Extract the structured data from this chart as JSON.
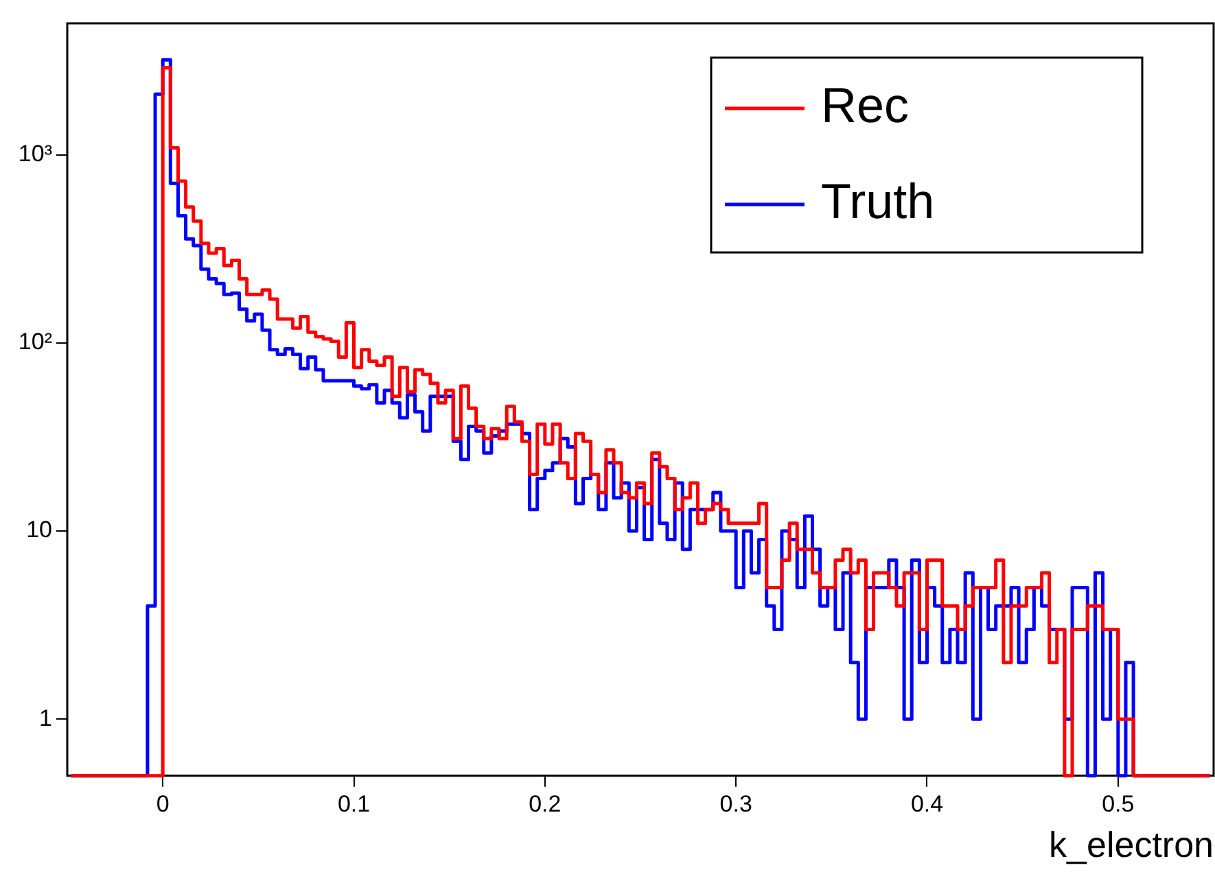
{
  "chart_data": {
    "type": "histogram",
    "xlabel": "k_electron",
    "bins": [
      -0.048,
      -0.044,
      -0.04,
      -0.036,
      -0.032,
      -0.028,
      -0.024,
      -0.02,
      -0.016,
      -0.012,
      -0.008,
      -0.004,
      0,
      0.004,
      0.008,
      0.012,
      0.016,
      0.02,
      0.024,
      0.028,
      0.032,
      0.036,
      0.04,
      0.044,
      0.048,
      0.052,
      0.056,
      0.06,
      0.064,
      0.068,
      0.072,
      0.076,
      0.08,
      0.084,
      0.088,
      0.092,
      0.096,
      0.1,
      0.104,
      0.108,
      0.112,
      0.116,
      0.12,
      0.124,
      0.128,
      0.132,
      0.136,
      0.14,
      0.144,
      0.148,
      0.152,
      0.156,
      0.16,
      0.164,
      0.168,
      0.172,
      0.176,
      0.18,
      0.184,
      0.188,
      0.192,
      0.196,
      0.2,
      0.204,
      0.208,
      0.212,
      0.216,
      0.22,
      0.224,
      0.228,
      0.232,
      0.236,
      0.24,
      0.244,
      0.248,
      0.252,
      0.256,
      0.26,
      0.264,
      0.268,
      0.272,
      0.276,
      0.28,
      0.284,
      0.288,
      0.292,
      0.296,
      0.3,
      0.304,
      0.308,
      0.312,
      0.316,
      0.32,
      0.324,
      0.328,
      0.332,
      0.336,
      0.34,
      0.344,
      0.348,
      0.352,
      0.356,
      0.36,
      0.364,
      0.368,
      0.372,
      0.376,
      0.38,
      0.384,
      0.388,
      0.392,
      0.396,
      0.4,
      0.404,
      0.408,
      0.412,
      0.416,
      0.42,
      0.424,
      0.428,
      0.432,
      0.436,
      0.44,
      0.444,
      0.448,
      0.452,
      0.456,
      0.46,
      0.464,
      0.468,
      0.472,
      0.476,
      0.48,
      0.484,
      0.488,
      0.492,
      0.496,
      0.5,
      0.504,
      0.508,
      0.512,
      0.516,
      0.52,
      0.524,
      0.528,
      0.532,
      0.536,
      0.54,
      0.544,
      0.548
    ],
    "series": [
      {
        "name": "Rec",
        "color": "#ff0000",
        "values": [
          null,
          null,
          null,
          null,
          null,
          null,
          null,
          null,
          null,
          null,
          null,
          null,
          2900,
          1090,
          725,
          528,
          444,
          338,
          300,
          317,
          258,
          275,
          219,
          181,
          181,
          191,
          171,
          134,
          134,
          120,
          138,
          114,
          108,
          105,
          102,
          84,
          128,
          74,
          92,
          80,
          76,
          84,
          52,
          74,
          55,
          72,
          68,
          61,
          48,
          56,
          31,
          59,
          45,
          36,
          31,
          35,
          31,
          46,
          38,
          30,
          20,
          37,
          29,
          37,
          23,
          19,
          33,
          30,
          20,
          16,
          27,
          23,
          16,
          15,
          18,
          14,
          26,
          22,
          19,
          13,
          15,
          18,
          11,
          13,
          14,
          13,
          11,
          11,
          11,
          11,
          14,
          5,
          5,
          7,
          11,
          8,
          8,
          6,
          5,
          5,
          7,
          8,
          6,
          7,
          3,
          6,
          6,
          5,
          4,
          6,
          6,
          3,
          7,
          7,
          4,
          4,
          3,
          4,
          5,
          5,
          5,
          7,
          2,
          4,
          4,
          5,
          5,
          6,
          2,
          3,
          null,
          3,
          3,
          4,
          4,
          3,
          3,
          1,
          1,
          null,
          null,
          null,
          null,
          null,
          null,
          null,
          null,
          null,
          null
        ]
      },
      {
        "name": "Truth",
        "color": "#0000ff",
        "values": [
          null,
          null,
          null,
          null,
          null,
          null,
          null,
          null,
          null,
          null,
          4,
          2100,
          3200,
          705,
          474,
          357,
          329,
          247,
          219,
          207,
          181,
          184,
          151,
          131,
          142,
          117,
          92,
          87,
          93,
          87,
          73,
          84,
          72,
          63,
          63,
          63,
          63,
          59,
          57,
          60,
          48,
          56,
          48,
          40,
          53,
          43,
          34,
          52,
          52,
          52,
          30,
          24,
          36,
          34,
          26,
          32,
          34,
          37,
          37,
          33,
          13,
          19,
          21,
          23,
          31,
          28,
          14,
          19,
          20,
          13,
          23,
          15,
          18,
          10,
          17,
          9,
          24,
          11,
          9,
          18,
          8,
          13,
          13,
          13,
          16,
          10,
          10,
          5,
          10,
          6,
          9,
          4,
          3,
          10,
          9,
          5,
          12,
          8,
          4,
          5,
          3,
          6,
          2,
          1,
          5,
          5,
          5,
          7,
          5,
          1,
          7,
          2,
          5,
          4,
          2,
          3,
          2,
          6,
          1,
          5,
          3,
          4,
          4,
          5,
          2,
          3,
          5,
          4,
          3,
          3,
          1,
          5,
          5,
          null,
          6,
          1,
          3,
          null,
          2,
          null,
          null,
          null,
          null,
          null,
          null,
          null,
          null,
          null,
          null
        ]
      }
    ],
    "xlim": [
      -0.05,
      0.55
    ],
    "xticks": [
      0,
      0.1,
      0.2,
      0.3,
      0.4,
      0.5
    ],
    "ylim": [
      0.5,
      5000
    ],
    "yticks": [
      1,
      10,
      {
        "value": 100,
        "label": "10²"
      },
      {
        "value": 1000,
        "label": "10³"
      }
    ],
    "log": "y",
    "grid": false,
    "legend": "top right"
  }
}
